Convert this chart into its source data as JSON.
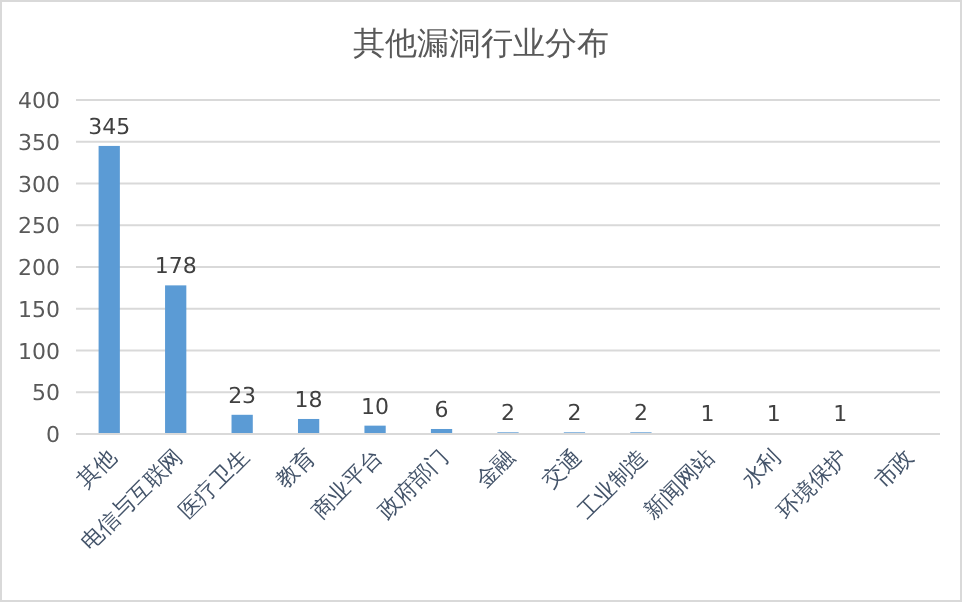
{
  "chart_data": {
    "type": "bar",
    "title": "其他漏洞行业分布",
    "categories": [
      "其他",
      "电信与互联网",
      "医疗卫生",
      "教育",
      "商业平台",
      "政府部门",
      "金融",
      "交通",
      "工业制造",
      "新闻网站",
      "水利",
      "环境保护",
      "市政"
    ],
    "values": [
      345,
      178,
      23,
      18,
      10,
      6,
      2,
      2,
      2,
      1,
      1,
      1,
      0
    ],
    "value_labels": [
      "345",
      "178",
      "23",
      "18",
      "10",
      "6",
      "2",
      "2",
      "2",
      "1",
      "1",
      "1",
      null
    ],
    "color": "#5b9bd5",
    "ylim": [
      0,
      400
    ],
    "yticks": [
      0,
      50,
      100,
      150,
      200,
      250,
      300,
      350,
      400
    ],
    "grid": "y"
  }
}
